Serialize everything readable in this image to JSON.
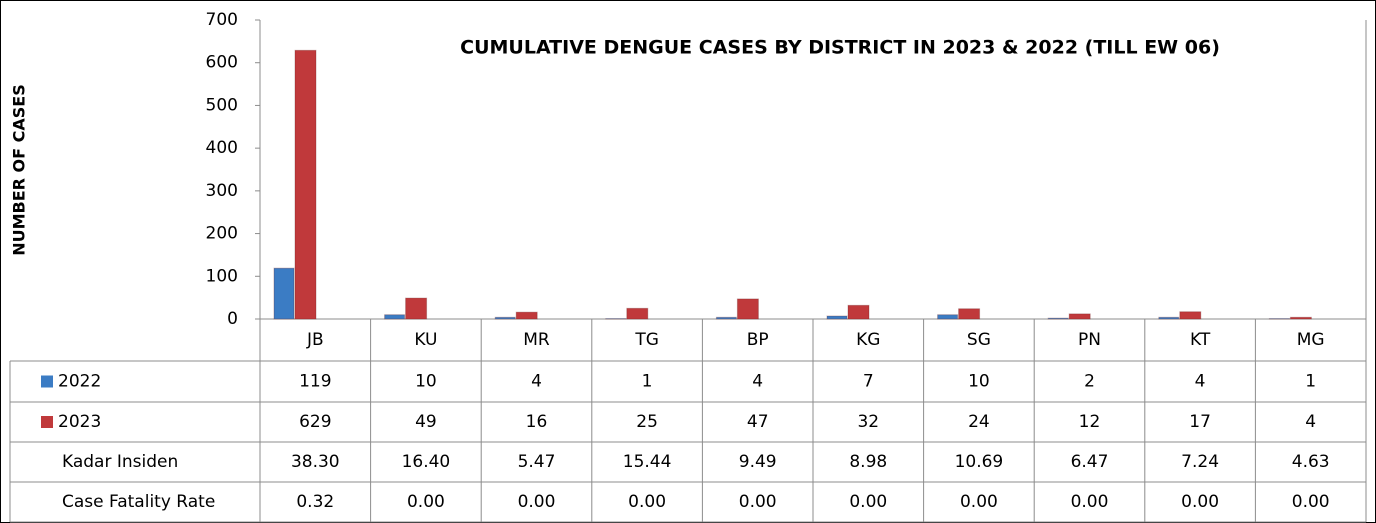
{
  "chart_data": {
    "type": "bar",
    "title": "CUMULATIVE DENGUE CASES BY DISTRICT IN 2023 & 2022 (TILL EW 06)",
    "y_label": "NUMBER OF CASES",
    "categories": [
      "JB",
      "KU",
      "MR",
      "TG",
      "BP",
      "KG",
      "SG",
      "PN",
      "KT",
      "MG"
    ],
    "series": [
      {
        "name": "2022",
        "color": "#3b7cc4",
        "values": [
          119,
          10,
          4,
          1,
          4,
          7,
          10,
          2,
          4,
          1
        ]
      },
      {
        "name": "2023",
        "color": "#c0393b",
        "values": [
          629,
          49,
          16,
          25,
          47,
          32,
          24,
          12,
          17,
          4
        ]
      }
    ],
    "table_rows": [
      {
        "name": "Kadar Insiden",
        "values": [
          38.3,
          16.4,
          5.47,
          15.44,
          9.49,
          8.98,
          10.69,
          6.47,
          7.24,
          4.63
        ],
        "value_labels": [
          "38.30",
          "16.40",
          "5.47",
          "15.44",
          "9.49",
          "8.98",
          "10.69",
          "6.47",
          "7.24",
          "4.63"
        ]
      },
      {
        "name": "Case Fatality Rate",
        "values": [
          0.32,
          0,
          0,
          0,
          0,
          0,
          0,
          0,
          0,
          0
        ],
        "value_labels": [
          "0.32",
          "0.00",
          "0.00",
          "0.00",
          "0.00",
          "0.00",
          "0.00",
          "0.00",
          "0.00",
          "0.00"
        ]
      }
    ],
    "ylim": [
      0,
      700
    ],
    "yticks": [
      0,
      100,
      200,
      300,
      400,
      500,
      600,
      700
    ],
    "grid": false
  }
}
